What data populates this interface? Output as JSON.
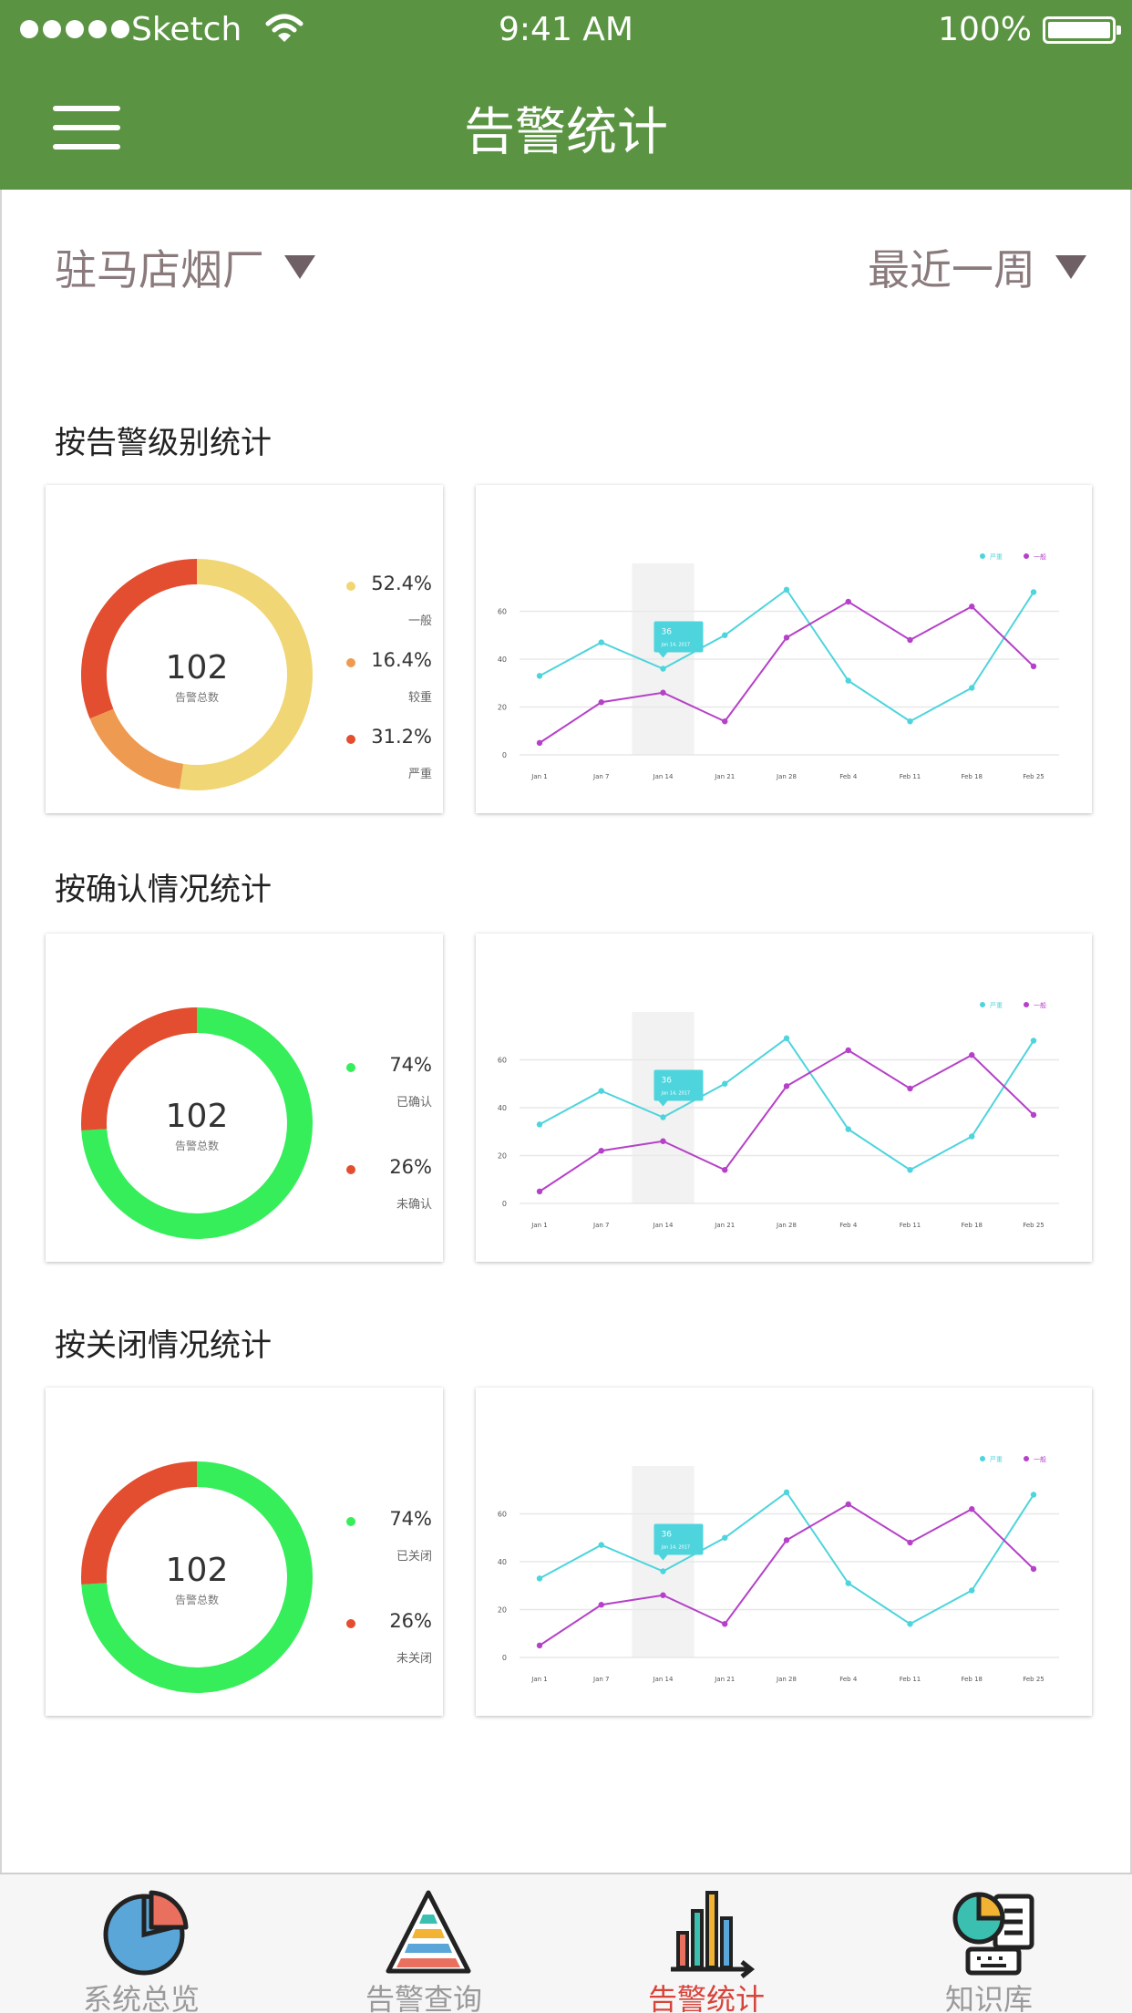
{
  "status_bar": {
    "carrier": "Sketch",
    "time": "9:41 AM",
    "battery": "100%"
  },
  "header": {
    "title": "告警统计",
    "menu_icon": "hamburger-menu-icon"
  },
  "filters": {
    "factory": "驻马店烟厂",
    "period": "最近一周"
  },
  "sections": [
    {
      "title": "按告警级别统计",
      "donut": {
        "total": "102",
        "total_label": "告警总数",
        "items": [
          {
            "pct": "52.4%",
            "label": "一般",
            "value": 52.4,
            "color": "#f0d674"
          },
          {
            "pct": "16.4%",
            "label": "较重",
            "value": 16.4,
            "color": "#ee9b51"
          },
          {
            "pct": "31.2%",
            "label": "严重",
            "value": 31.2,
            "color": "#e24e2f"
          }
        ]
      }
    },
    {
      "title": "按确认情况统计",
      "donut": {
        "total": "102",
        "total_label": "告警总数",
        "items": [
          {
            "pct": "74%",
            "label": "已确认",
            "value": 74,
            "color": "#35ee5a"
          },
          {
            "pct": "26%",
            "label": "未确认",
            "value": 26,
            "color": "#e24e2f"
          }
        ]
      }
    },
    {
      "title": "按关闭情况统计",
      "donut": {
        "total": "102",
        "total_label": "告警总数",
        "items": [
          {
            "pct": "74%",
            "label": "已关闭",
            "value": 74,
            "color": "#35ee5a"
          },
          {
            "pct": "26%",
            "label": "未关闭",
            "value": 26,
            "color": "#e24e2f"
          }
        ]
      }
    }
  ],
  "chart_data": [
    {
      "type": "pie",
      "categories": [
        "一般",
        "较重",
        "严重"
      ],
      "values": [
        52.4,
        16.4,
        31.2
      ],
      "title": "按告警级别统计"
    },
    {
      "type": "line",
      "categories": [
        "Jan 1",
        "Jan 7",
        "Jan 14",
        "Jan 21",
        "Jan 28",
        "Feb 4",
        "Feb 11",
        "Feb 18",
        "Feb 25"
      ],
      "series": [
        {
          "name": "严重",
          "color": "#4dd4dc",
          "values": [
            33,
            47,
            36,
            50,
            69,
            31,
            14,
            28,
            68
          ]
        },
        {
          "name": "一般",
          "color": "#b541c8",
          "values": [
            5,
            22,
            26,
            14,
            49,
            64,
            48,
            62,
            37
          ]
        }
      ],
      "ylim": [
        0,
        80
      ],
      "yticks": [
        0,
        20,
        40,
        60
      ],
      "tooltip": {
        "value": "36",
        "date": "Jan 14, 2017",
        "index": 2
      },
      "grid": true,
      "legend": "top-right"
    },
    {
      "type": "pie",
      "categories": [
        "已确认",
        "未确认"
      ],
      "values": [
        74,
        26
      ],
      "title": "按确认情况统计"
    },
    {
      "type": "line",
      "categories": [
        "Jan 1",
        "Jan 7",
        "Jan 14",
        "Jan 21",
        "Jan 28",
        "Feb 4",
        "Feb 11",
        "Feb 18",
        "Feb 25"
      ],
      "series": [
        {
          "name": "严重",
          "color": "#4dd4dc",
          "values": [
            33,
            47,
            36,
            50,
            69,
            31,
            14,
            28,
            68
          ]
        },
        {
          "name": "一般",
          "color": "#b541c8",
          "values": [
            5,
            22,
            26,
            14,
            49,
            64,
            48,
            62,
            37
          ]
        }
      ],
      "ylim": [
        0,
        80
      ],
      "yticks": [
        0,
        20,
        40,
        60
      ],
      "tooltip": {
        "value": "36",
        "date": "Jan 14, 2017",
        "index": 2
      },
      "grid": true,
      "legend": "top-right"
    },
    {
      "type": "pie",
      "categories": [
        "已关闭",
        "未关闭"
      ],
      "values": [
        74,
        26
      ],
      "title": "按关闭情况统计"
    },
    {
      "type": "line",
      "categories": [
        "Jan 1",
        "Jan 7",
        "Jan 14",
        "Jan 21",
        "Jan 28",
        "Feb 4",
        "Feb 11",
        "Feb 18",
        "Feb 25"
      ],
      "series": [
        {
          "name": "严重",
          "color": "#4dd4dc",
          "values": [
            33,
            47,
            36,
            50,
            69,
            31,
            14,
            28,
            68
          ]
        },
        {
          "name": "一般",
          "color": "#b541c8",
          "values": [
            5,
            22,
            26,
            14,
            49,
            64,
            48,
            62,
            37
          ]
        }
      ],
      "ylim": [
        0,
        80
      ],
      "yticks": [
        0,
        20,
        40,
        60
      ],
      "tooltip": {
        "value": "36",
        "date": "Jan 14, 2017",
        "index": 2
      },
      "grid": true,
      "legend": "top-right"
    }
  ],
  "tabs": [
    {
      "label": "系统总览",
      "icon": "pie-chart-icon",
      "active": false
    },
    {
      "label": "告警查询",
      "icon": "pyramid-icon",
      "active": false
    },
    {
      "label": "告警统计",
      "icon": "bar-chart-icon",
      "active": true
    },
    {
      "label": "知识库",
      "icon": "document-chart-icon",
      "active": false
    }
  ],
  "colors": {
    "header": "#5a9442",
    "active_tab": "#d8433a"
  }
}
